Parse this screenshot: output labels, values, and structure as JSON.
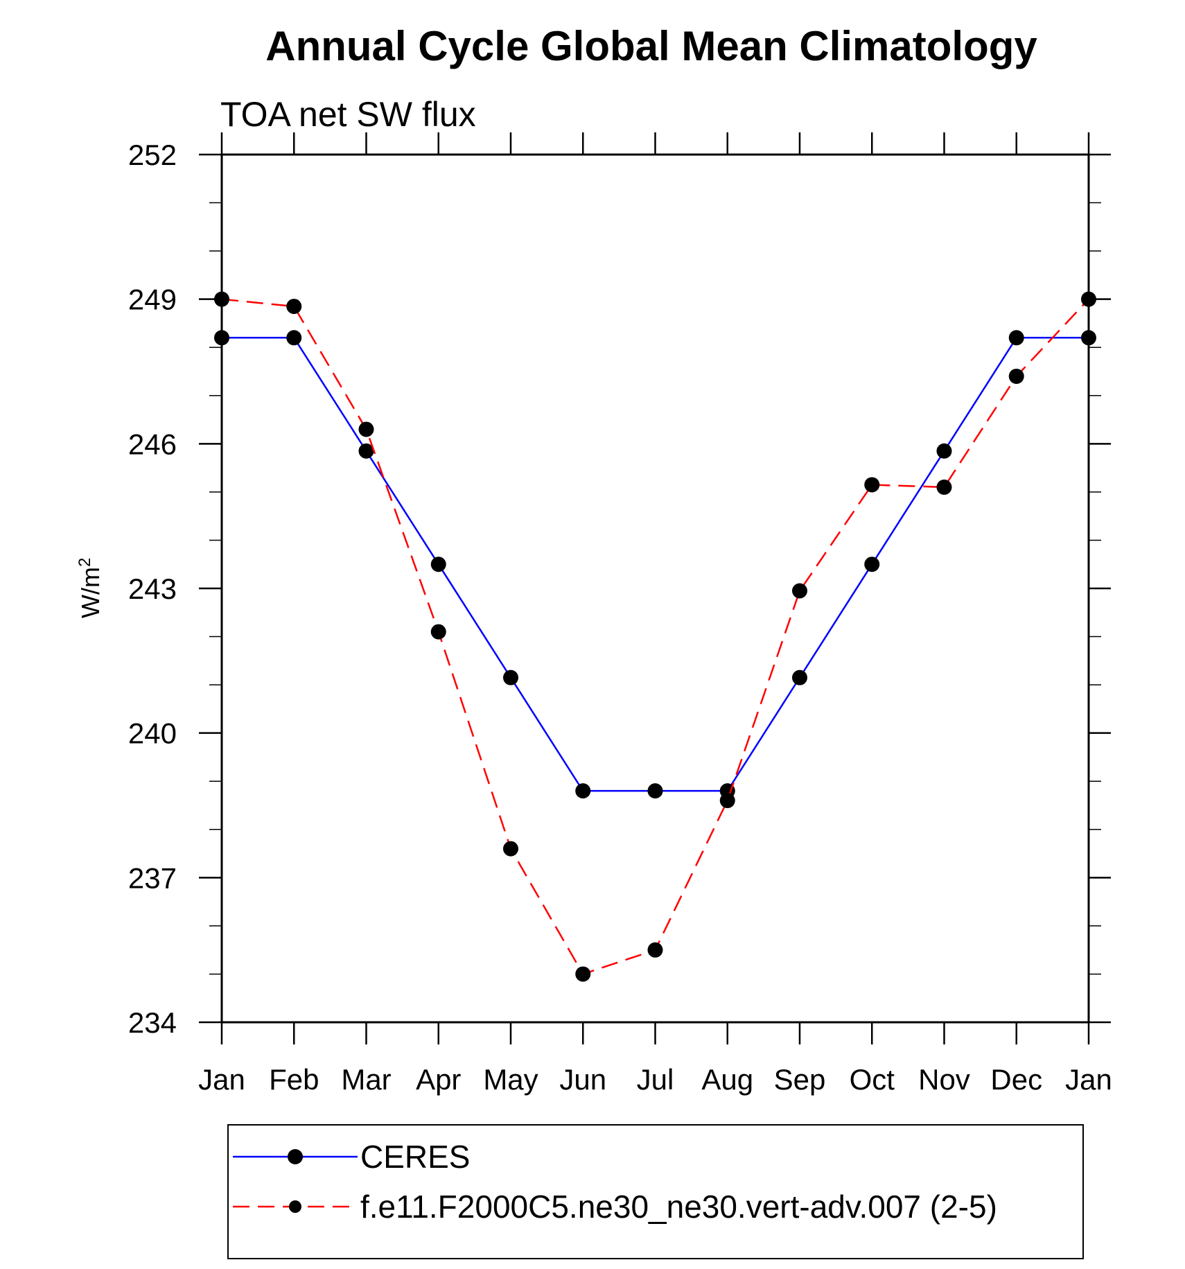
{
  "chart_data": {
    "type": "line",
    "title": "Annual Cycle Global Mean Climatology",
    "subtitle": "TOA net SW flux",
    "xlabel": "",
    "ylabel": "W/m",
    "ylabel_superscript": "2",
    "categories": [
      "Jan",
      "Feb",
      "Mar",
      "Apr",
      "May",
      "Jun",
      "Jul",
      "Aug",
      "Sep",
      "Oct",
      "Nov",
      "Dec",
      "Jan"
    ],
    "ylim": [
      234,
      252
    ],
    "yticks": [
      234,
      237,
      240,
      243,
      246,
      249,
      252
    ],
    "y_minor_step": 1,
    "legend_position": "bottom",
    "series": [
      {
        "name": "CERES",
        "color": "#0000ff",
        "dash": "solid",
        "values": [
          248.2,
          248.2,
          245.85,
          243.5,
          241.15,
          238.8,
          238.8,
          238.8,
          241.15,
          243.5,
          245.85,
          248.2,
          248.2
        ]
      },
      {
        "name": "f.e11.F2000C5.ne30_ne30.vert-adv.007 (2-5)",
        "color": "#ff0000",
        "dash": "dashed",
        "values": [
          249.0,
          248.85,
          246.3,
          242.1,
          237.6,
          235.0,
          235.5,
          238.6,
          242.95,
          245.15,
          245.1,
          247.4,
          249.0
        ]
      }
    ]
  }
}
